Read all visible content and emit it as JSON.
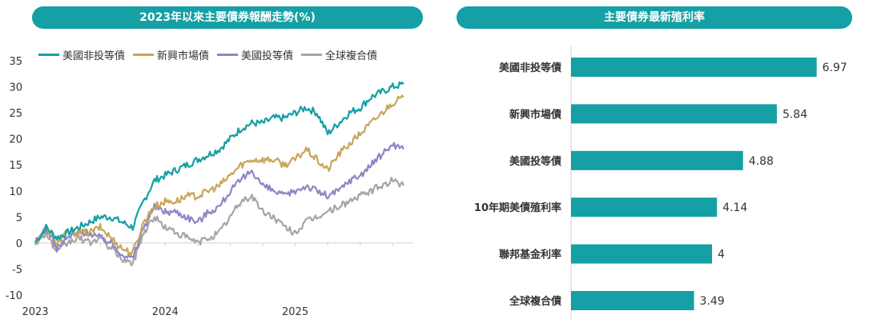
{
  "chart_data": [
    {
      "type": "line",
      "title": "2023年以來主要債券報酬走勢(%)",
      "x_tick_labels": [
        "2023",
        "2024",
        "2025"
      ],
      "y_ticks": [
        "35",
        "30",
        "25",
        "20",
        "15",
        "10",
        "5",
        "0",
        "-5",
        "-10"
      ],
      "ylim": [
        -10,
        35
      ],
      "grid": false,
      "legend": "top",
      "series": [
        {
          "name": "美國非投等債",
          "color": "#14a0a4",
          "x": [
            "2023-01",
            "2023-02",
            "2023-03",
            "2023-04",
            "2023-05",
            "2023-06",
            "2023-07",
            "2023-08",
            "2023-09",
            "2023-10",
            "2023-11",
            "2023-12",
            "2024-01",
            "2024-02",
            "2024-03",
            "2024-04",
            "2024-05",
            "2024-06",
            "2024-07",
            "2024-08",
            "2024-09",
            "2024-10",
            "2024-11",
            "2024-12",
            "2025-01",
            "2025-02",
            "2025-03",
            "2025-04",
            "2025-05",
            "2025-06",
            "2025-07",
            "2025-08",
            "2025-09",
            "2025-10",
            "2025-11"
          ],
          "values": [
            0,
            3,
            1,
            2,
            3,
            4,
            5,
            5,
            4,
            3,
            8,
            12,
            13,
            14,
            15,
            16,
            17,
            18,
            20,
            22,
            23,
            23,
            24,
            24,
            25,
            26,
            25,
            21,
            23,
            25,
            26,
            28,
            29,
            30,
            30.5
          ]
        },
        {
          "name": "新興市場債",
          "color": "#c9a55a",
          "x": [
            "2023-01",
            "2023-02",
            "2023-03",
            "2023-04",
            "2023-05",
            "2023-06",
            "2023-07",
            "2023-08",
            "2023-09",
            "2023-10",
            "2023-11",
            "2023-12",
            "2024-01",
            "2024-02",
            "2024-03",
            "2024-04",
            "2024-05",
            "2024-06",
            "2024-07",
            "2024-08",
            "2024-09",
            "2024-10",
            "2024-11",
            "2024-12",
            "2025-01",
            "2025-02",
            "2025-03",
            "2025-04",
            "2025-05",
            "2025-06",
            "2025-07",
            "2025-08",
            "2025-09",
            "2025-10",
            "2025-11"
          ],
          "values": [
            0,
            3,
            0,
            2,
            2,
            2,
            3,
            1,
            -1,
            -2,
            4,
            7,
            8,
            8,
            9,
            9,
            10,
            11,
            13,
            15,
            16,
            16,
            16,
            15,
            16,
            18,
            16,
            14,
            17,
            19,
            21,
            23,
            25,
            27,
            28
          ]
        },
        {
          "name": "美國投等債",
          "color": "#8c86c4",
          "x": [
            "2023-01",
            "2023-02",
            "2023-03",
            "2023-04",
            "2023-05",
            "2023-06",
            "2023-07",
            "2023-08",
            "2023-09",
            "2023-10",
            "2023-11",
            "2023-12",
            "2024-01",
            "2024-02",
            "2024-03",
            "2024-04",
            "2024-05",
            "2024-06",
            "2024-07",
            "2024-08",
            "2024-09",
            "2024-10",
            "2024-11",
            "2024-12",
            "2025-01",
            "2025-02",
            "2025-03",
            "2025-04",
            "2025-05",
            "2025-06",
            "2025-07",
            "2025-08",
            "2025-09",
            "2025-10",
            "2025-11"
          ],
          "values": [
            0,
            3,
            -1,
            1,
            2,
            2,
            1,
            0,
            -2,
            -3,
            3,
            7,
            6,
            6,
            5,
            4,
            6,
            7,
            10,
            12,
            14,
            11,
            10,
            9,
            10,
            11,
            10,
            9,
            10,
            12,
            13,
            15,
            17,
            19,
            18
          ]
        },
        {
          "name": "全球複合債",
          "color": "#a5a5a5",
          "x": [
            "2023-01",
            "2023-02",
            "2023-03",
            "2023-04",
            "2023-05",
            "2023-06",
            "2023-07",
            "2023-08",
            "2023-09",
            "2023-10",
            "2023-11",
            "2023-12",
            "2024-01",
            "2024-02",
            "2024-03",
            "2024-04",
            "2024-05",
            "2024-06",
            "2024-07",
            "2024-08",
            "2024-09",
            "2024-10",
            "2024-11",
            "2024-12",
            "2025-01",
            "2025-02",
            "2025-03",
            "2025-04",
            "2025-05",
            "2025-06",
            "2025-07",
            "2025-08",
            "2025-09",
            "2025-10",
            "2025-11"
          ],
          "values": [
            0,
            2,
            -2,
            0,
            1,
            0,
            1,
            -1,
            -3,
            -4,
            2,
            5,
            3,
            2,
            1,
            0,
            1,
            2,
            5,
            8,
            9,
            6,
            5,
            3,
            2,
            4,
            5,
            6,
            7,
            8,
            9,
            10,
            11,
            12,
            11
          ]
        }
      ]
    },
    {
      "type": "bar",
      "orientation": "horizontal",
      "title": "主要債券最新殖利率",
      "categories": [
        "美國非投等債",
        "新興市場債",
        "美國投等債",
        "10年期美債殖利率",
        "聯邦基金利率",
        "全球複合債"
      ],
      "values": [
        6.97,
        5.84,
        4.88,
        4.14,
        4,
        3.49
      ],
      "value_labels": [
        "6.97",
        "5.84",
        "4.88",
        "4.14",
        "4",
        "3.49"
      ],
      "xlim": [
        0,
        8
      ],
      "color": "#14a0a4"
    }
  ]
}
